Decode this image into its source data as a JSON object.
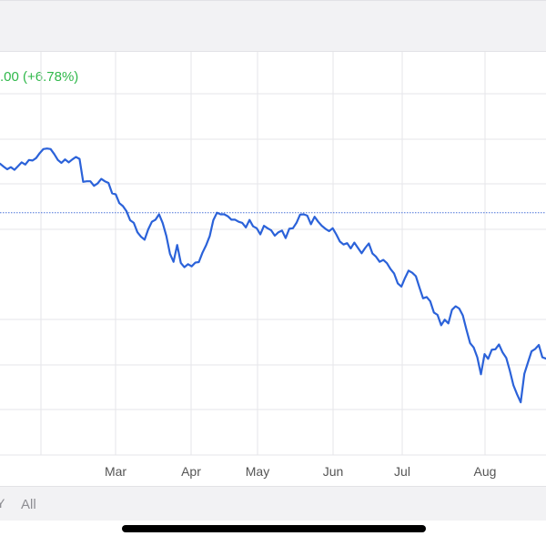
{
  "header": {
    "change_text": ".00 (+6.78%)"
  },
  "range_bar": {
    "partial_label": "Y",
    "all_label": "All"
  },
  "colors": {
    "line": "#2b62d9",
    "gain": "#2fb84a",
    "grid": "#e6e6ea",
    "reference": "#4a73d9"
  },
  "chart_data": {
    "type": "line",
    "months": [
      "Mar",
      "Apr",
      "May",
      "Jun",
      "Jul",
      "Aug"
    ],
    "grid_on": true,
    "reference_line": 75.5,
    "ylim": [
      0,
      100
    ],
    "series": [
      {
        "values": [
          93.9,
          92.8,
          91.8,
          92.6,
          91.6,
          93.0,
          94.4,
          93.6,
          95.3,
          95.1,
          96.0,
          97.9,
          99.4,
          99.6,
          99.4,
          97.5,
          95.3,
          94.2,
          95.5,
          94.4,
          95.5,
          96.4,
          95.7,
          87.1,
          87.3,
          87.3,
          85.6,
          86.5,
          88.2,
          87.3,
          86.7,
          82.8,
          82.4,
          79.1,
          78.0,
          76.0,
          72.7,
          71.7,
          68.2,
          66.5,
          65.4,
          69.3,
          72.1,
          72.9,
          74.9,
          71.6,
          66.8,
          60.1,
          57.1,
          63.4,
          56.7,
          55.1,
          56.2,
          55.4,
          56.8,
          57.0,
          60.5,
          63.3,
          66.8,
          72.7,
          75.5,
          74.9,
          74.9,
          74.2,
          72.9,
          72.9,
          72.1,
          71.7,
          70.0,
          72.8,
          70.4,
          69.7,
          67.4,
          70.6,
          69.7,
          68.9,
          66.9,
          68.2,
          68.8,
          66.0,
          69.5,
          69.7,
          71.7,
          74.8,
          74.9,
          74.4,
          71.2,
          74.0,
          72.1,
          70.6,
          69.5,
          68.6,
          69.7,
          67.4,
          64.7,
          63.6,
          64.1,
          62.1,
          64.3,
          62.3,
          60.3,
          62.3,
          64.0,
          60.2,
          59.0,
          57.1,
          57.8,
          56.6,
          54.4,
          52.7,
          49.0,
          47.8,
          51.0,
          53.8,
          53.0,
          51.7,
          47.5,
          43.4,
          43.9,
          42.3,
          38.1,
          37.2,
          33.3,
          35.4,
          34.0,
          39.1,
          40.4,
          39.6,
          37.0,
          31.6,
          26.6,
          25.0,
          21.3,
          14.9,
          22.5,
          20.7,
          24.1,
          24.3,
          26.1,
          23.1,
          21.1,
          16.2,
          10.8,
          7.4,
          4.4,
          15.1,
          19.3,
          23.5,
          24.4,
          25.9,
          21.3,
          20.8
        ]
      }
    ]
  }
}
